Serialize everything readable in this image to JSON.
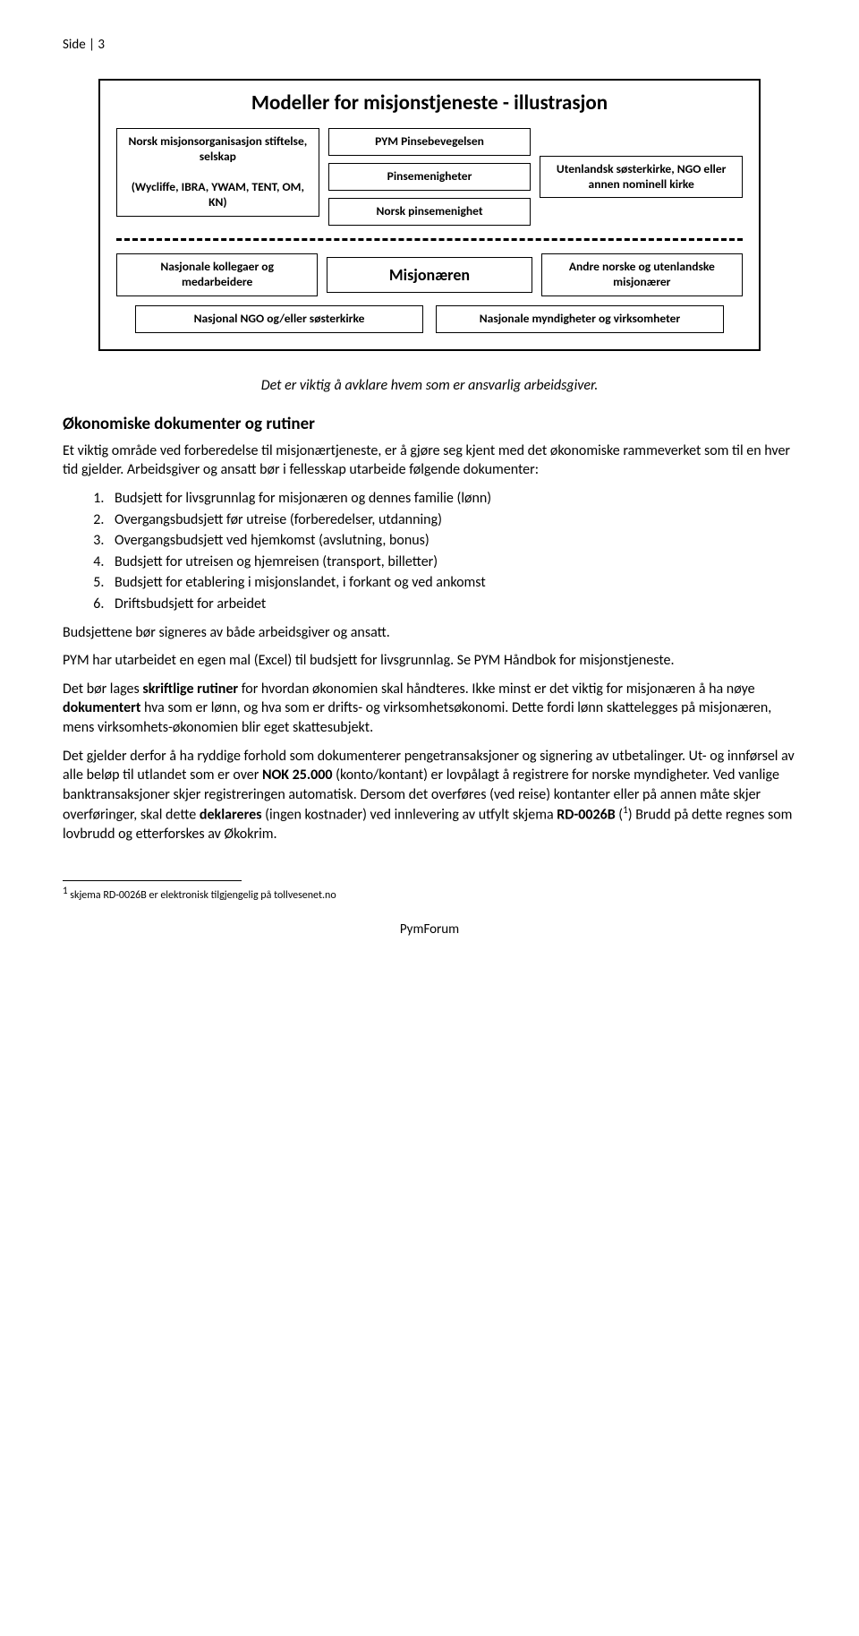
{
  "header": "Side | 3",
  "diagram": {
    "title": "Modeller for misjonstjeneste - illustrasjon",
    "row1_col1_box1": "Norsk misjonsorganisasjon stiftelse, selskap",
    "row1_col1_box1b": "(Wycliffe, IBRA, YWAM, TENT, OM, KN)",
    "row1_col2_box1": "PYM Pinsebevegelsen",
    "row1_col2_box2": "Pinsemenigheter",
    "row1_col2_box3": "Norsk pinsemenighet",
    "row1_col3_box1": "Utenlandsk søsterkirke, NGO eller annen nominell kirke",
    "row2_left": "Nasjonale kollegaer og medarbeidere",
    "row2_center": "Misjonæren",
    "row2_right": "Andre norske og utenlandske misjonærer",
    "row3_left": "Nasjonal NGO og/eller søsterkirke",
    "row3_right": "Nasjonale myndigheter og virksomheter"
  },
  "italic_line": "Det er viktig å avklare hvem som er ansvarlig arbeidsgiver.",
  "section_title": "Økonomiske dokumenter og rutiner",
  "p1": "Et viktig område ved forberedelse til misjonærtjeneste, er å gjøre seg kjent med det økonomiske rammeverket som til en hver tid gjelder. Arbeidsgiver og ansatt bør i fellesskap utarbeide følgende dokumenter:",
  "list": {
    "i1": "Budsjett for livsgrunnlag for misjonæren og dennes familie (lønn)",
    "i2": "Overgangsbudsjett før utreise (forberedelser, utdanning)",
    "i3": "Overgangsbudsjett ved hjemkomst (avslutning, bonus)",
    "i4": "Budsjett for utreisen og hjemreisen (transport, billetter)",
    "i5": "Budsjett for etablering i misjonslandet, i forkant og ved ankomst",
    "i6": "Driftsbudsjett for arbeidet"
  },
  "p2": "Budsjettene bør signeres av både arbeidsgiver og ansatt.",
  "p3": "PYM har utarbeidet en egen mal (Excel) til budsjett for livsgrunnlag. Se PYM Håndbok for misjonstjeneste.",
  "p4_a": "Det bør lages ",
  "p4_b": "skriftlige rutiner",
  "p4_c": " for hvordan økonomien skal håndteres. Ikke minst er det viktig for misjonæren å ha nøye ",
  "p4_d": "dokumentert",
  "p4_e": " hva som er lønn, og hva som er drifts- og virksomhetsøkonomi. Dette fordi lønn skattelegges på misjonæren, mens virksomhets-økonomien blir eget skattesubjekt.",
  "p5_a": "Det gjelder derfor å ha ryddige forhold som dokumenterer pengetransaksjoner og signering av utbetalinger. Ut- og innførsel av alle beløp til utlandet som er over ",
  "p5_b": "NOK 25.000",
  "p5_c": " (konto/kontant) er lovpålagt å registrere for norske myndigheter. Ved vanlige banktransaksjoner skjer registreringen automatisk. Dersom det overføres (ved reise) kontanter eller på annen måte skjer overføringer, skal dette ",
  "p5_d": "deklareres",
  "p5_e": " (ingen kostnader) ved innlevering av utfylt skjema ",
  "p5_f": "RD-0026B",
  "p5_g": " (",
  "p5_sup": "1",
  "p5_h": ") Brudd på dette regnes som lovbrudd og etterforskes av Økokrim.",
  "footnote_num": "1",
  "footnote_text": " skjema RD-0026B er elektronisk tilgjengelig på tollvesenet.no",
  "footer": "PymForum"
}
